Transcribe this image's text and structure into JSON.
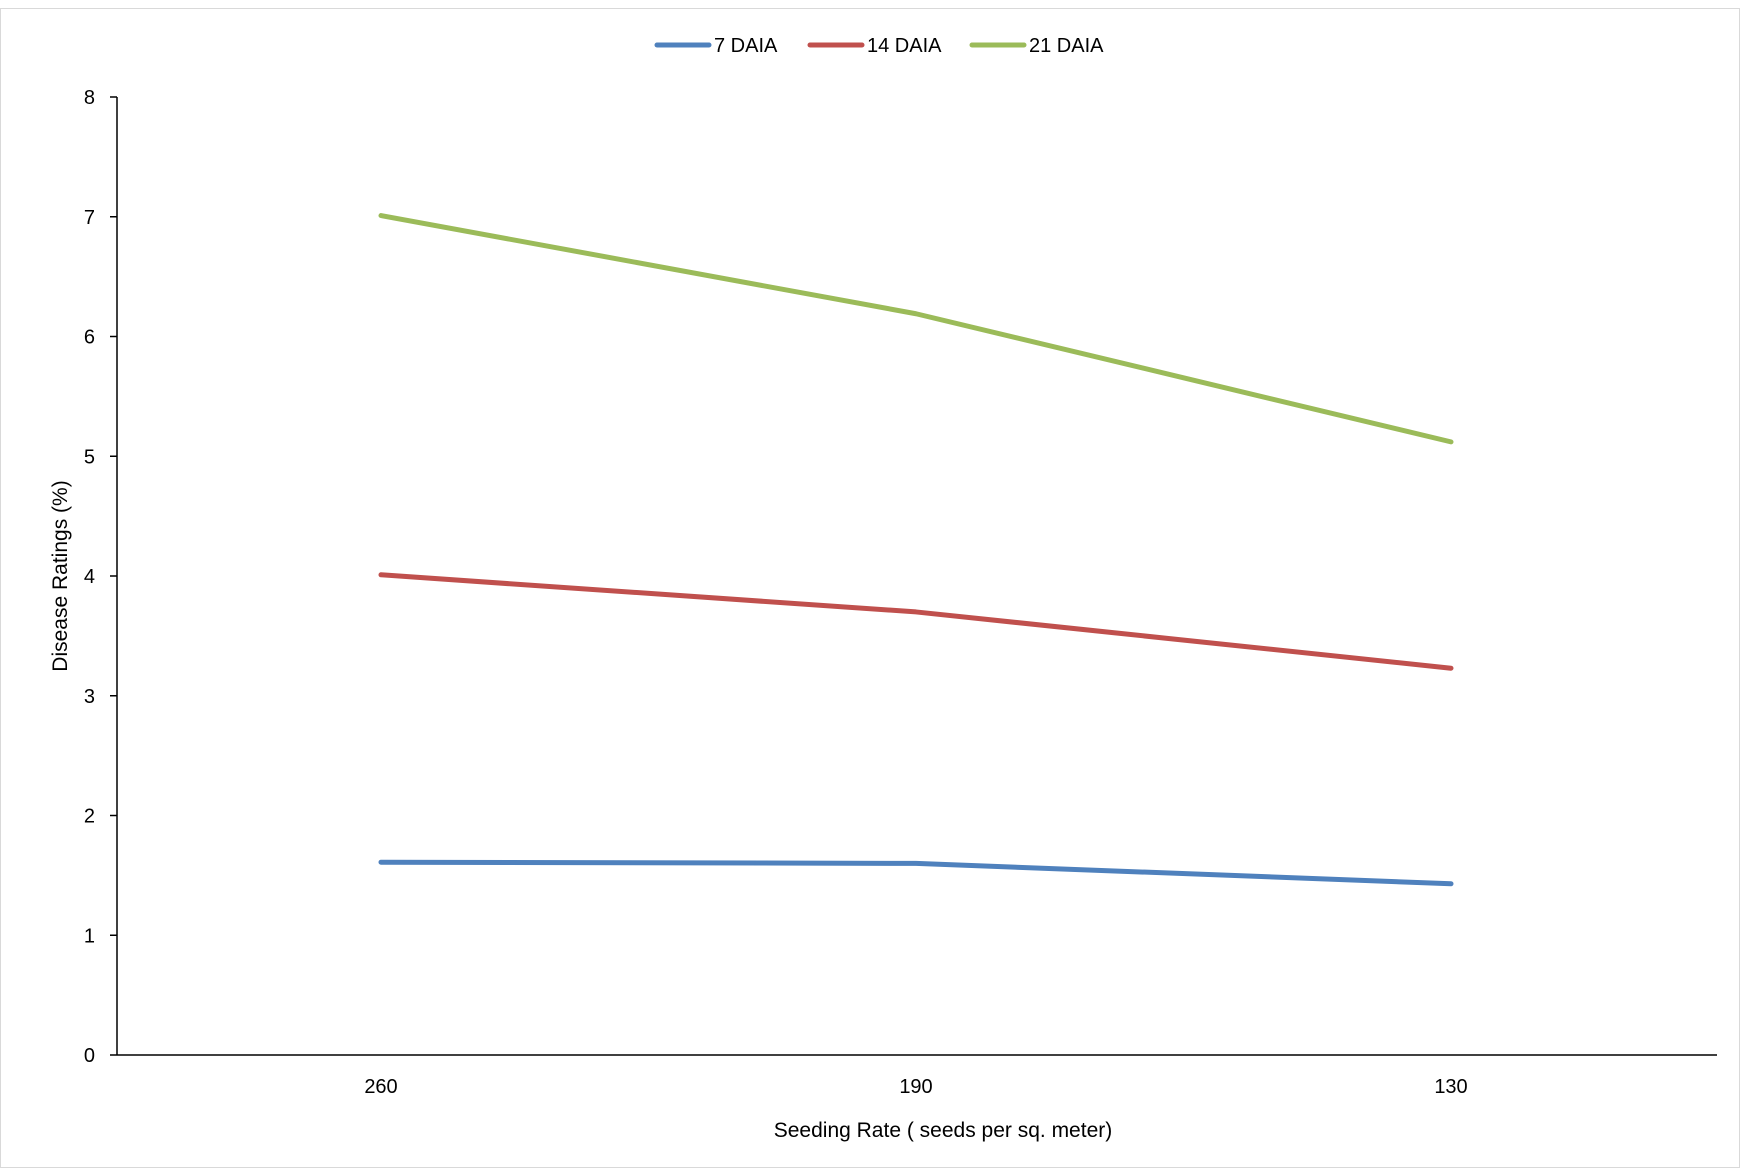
{
  "chart_data": {
    "type": "line",
    "title": "",
    "xlabel": "Seeding Rate ( seeds per sq. meter)",
    "ylabel": "Disease Ratings (%)",
    "categories": [
      "260",
      "190",
      "130"
    ],
    "ylim": [
      0,
      8
    ],
    "yticks": [
      0,
      1,
      2,
      3,
      4,
      5,
      6,
      7,
      8
    ],
    "grid": false,
    "legend_position": "top-center",
    "series": [
      {
        "name": "7 DAIA",
        "color": "#4f81bd",
        "values": [
          1.61,
          1.6,
          1.43
        ]
      },
      {
        "name": "14 DAIA",
        "color": "#c0504d",
        "values": [
          4.01,
          3.7,
          3.23
        ]
      },
      {
        "name": "21 DAIA",
        "color": "#9bbb59",
        "values": [
          7.01,
          6.19,
          5.12
        ]
      }
    ]
  }
}
